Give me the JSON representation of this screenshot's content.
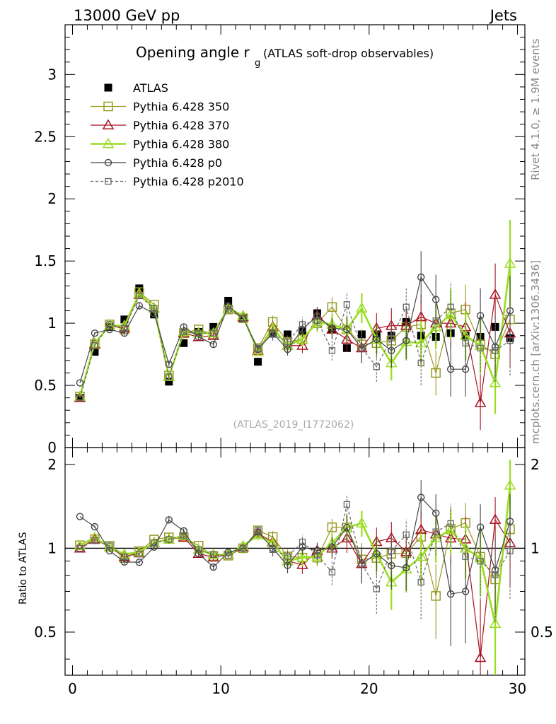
{
  "header": {
    "energy_label": "13000 GeV pp",
    "category_label": "Jets",
    "side_label_top": "Rivet 4.1.0, ≥ 1.9M events",
    "side_label_bottom": "mcplots.cern.ch [arXiv:1306.3436]",
    "analysis_id": "(ATLAS_2019_I1772062)"
  },
  "chart_data": {
    "type": "scatter",
    "title": "Opening angle r",
    "title_subscript": "g",
    "title_suffix": "(ATLAS soft-drop observables)",
    "xlabel": "",
    "ylabel_main": "",
    "ylabel_ratio": "Ratio to ATLAS",
    "xlim": [
      -0.5,
      30.5
    ],
    "ylim_main": [
      0,
      3.4
    ],
    "ylim_ratio": [
      0.35,
      2.3
    ],
    "x_ticks": [
      "0",
      "10",
      "20",
      "30"
    ],
    "y_ticks_main": [
      "0",
      "0.5",
      "1",
      "1.5",
      "2",
      "2.5",
      "3"
    ],
    "y_ticks_ratio": [
      "0.5",
      "1",
      "2"
    ],
    "legend_position": "top-left",
    "x": [
      0.5,
      1.5,
      2.5,
      3.5,
      4.5,
      5.5,
      6.5,
      7.5,
      8.5,
      9.5,
      10.5,
      11.5,
      12.5,
      13.5,
      14.5,
      15.5,
      16.5,
      17.5,
      18.5,
      19.5,
      20.5,
      21.5,
      22.5,
      23.5,
      24.5,
      25.5,
      26.5,
      27.5,
      28.5,
      29.5
    ],
    "series": [
      {
        "name": "ATLAS",
        "color": "#000000",
        "marker": "filled-square",
        "line": "none",
        "values": [
          0.4,
          0.77,
          0.97,
          1.03,
          1.28,
          1.07,
          0.53,
          0.84,
          0.93,
          0.97,
          1.18,
          1.04,
          0.69,
          0.92,
          0.91,
          0.94,
          1.08,
          0.95,
          0.8,
          0.91,
          0.91,
          0.9,
          1.01,
          0.9,
          0.89,
          0.92,
          0.9,
          0.89,
          0.97,
          0.88
        ]
      },
      {
        "name": "Pythia 6.428 350",
        "color": "#999922",
        "marker": "open-square",
        "line": "solid",
        "values": [
          0.41,
          0.83,
          0.99,
          0.95,
          1.25,
          1.15,
          0.58,
          0.92,
          0.95,
          0.91,
          1.11,
          1.04,
          0.8,
          1.01,
          0.85,
          0.87,
          1.0,
          1.13,
          0.95,
          0.83,
          0.84,
          0.86,
          0.97,
          0.99,
          0.6,
          1.08,
          1.11,
          0.83,
          0.75,
          1.03
        ],
        "errors": [
          0,
          0.01,
          0.01,
          0.02,
          0.02,
          0.02,
          0.02,
          0.02,
          0.02,
          0.02,
          0.02,
          0.03,
          0.03,
          0.05,
          0.05,
          0.06,
          0.07,
          0.08,
          0.1,
          0.12,
          0.12,
          0.14,
          0.15,
          0.18,
          0.18,
          0.2,
          0.2,
          0.22,
          0.25,
          0.28
        ]
      },
      {
        "name": "Pythia 6.428 370",
        "color": "#aa1122",
        "marker": "open-triangle",
        "line": "solid",
        "values": [
          0.4,
          0.83,
          0.98,
          0.96,
          1.23,
          1.12,
          0.57,
          0.92,
          0.89,
          0.9,
          1.12,
          1.05,
          0.78,
          0.97,
          0.82,
          0.82,
          1.06,
          0.95,
          0.87,
          0.8,
          0.96,
          0.98,
          0.98,
          1.05,
          1.0,
          1.0,
          0.97,
          0.36,
          1.23,
          0.92
        ],
        "errors": [
          0,
          0.01,
          0.01,
          0.02,
          0.02,
          0.02,
          0.02,
          0.02,
          0.02,
          0.02,
          0.02,
          0.03,
          0.03,
          0.05,
          0.05,
          0.06,
          0.07,
          0.08,
          0.1,
          0.12,
          0.12,
          0.14,
          0.15,
          0.18,
          0.18,
          0.2,
          0.2,
          0.22,
          0.25,
          0.28
        ]
      },
      {
        "name": "Pythia 6.428 380",
        "color": "#99dd22",
        "marker": "open-triangle",
        "line": "solid-thick",
        "values": [
          0.41,
          0.84,
          0.98,
          0.98,
          1.24,
          1.12,
          0.57,
          0.93,
          0.92,
          0.92,
          1.12,
          1.06,
          0.77,
          0.96,
          0.82,
          0.87,
          1.01,
          0.99,
          0.95,
          1.12,
          0.87,
          0.68,
          0.85,
          0.84,
          0.97,
          1.07,
          0.9,
          0.82,
          0.52,
          1.48
        ],
        "errors": [
          0,
          0.01,
          0.01,
          0.02,
          0.02,
          0.02,
          0.02,
          0.02,
          0.02,
          0.02,
          0.02,
          0.03,
          0.03,
          0.05,
          0.05,
          0.06,
          0.07,
          0.08,
          0.1,
          0.12,
          0.12,
          0.14,
          0.15,
          0.18,
          0.18,
          0.2,
          0.2,
          0.22,
          0.25,
          0.35
        ]
      },
      {
        "name": "Pythia 6.428 p0",
        "color": "#444444",
        "marker": "open-circle",
        "line": "solid",
        "values": [
          0.52,
          0.92,
          0.95,
          0.92,
          1.14,
          1.08,
          0.67,
          0.97,
          0.89,
          0.83,
          1.14,
          1.04,
          0.79,
          0.92,
          0.79,
          0.95,
          1.06,
          0.96,
          0.95,
          0.8,
          0.87,
          0.78,
          0.86,
          1.37,
          1.19,
          0.63,
          0.63,
          1.06,
          0.81,
          1.1
        ],
        "errors": [
          0,
          0.01,
          0.01,
          0.02,
          0.02,
          0.02,
          0.02,
          0.02,
          0.02,
          0.02,
          0.02,
          0.03,
          0.03,
          0.05,
          0.05,
          0.06,
          0.07,
          0.08,
          0.1,
          0.12,
          0.12,
          0.14,
          0.15,
          0.21,
          0.2,
          0.22,
          0.22,
          0.22,
          0.25,
          0.28
        ]
      },
      {
        "name": "Pythia 6.428 p2010",
        "color": "#666666",
        "marker": "open-square-small",
        "line": "dashed",
        "values": [
          0.4,
          0.82,
          0.99,
          0.96,
          1.22,
          1.12,
          0.57,
          0.93,
          0.92,
          0.92,
          1.11,
          1.04,
          0.8,
          0.91,
          0.85,
          0.99,
          1.02,
          0.78,
          1.15,
          0.8,
          0.65,
          0.88,
          1.13,
          0.68,
          1.02,
          1.13,
          0.84,
          0.8,
          0.78,
          0.86
        ],
        "errors": [
          0,
          0.01,
          0.01,
          0.02,
          0.02,
          0.02,
          0.02,
          0.02,
          0.02,
          0.02,
          0.02,
          0.03,
          0.03,
          0.05,
          0.05,
          0.06,
          0.07,
          0.08,
          0.1,
          0.12,
          0.12,
          0.14,
          0.15,
          0.18,
          0.18,
          0.2,
          0.2,
          0.22,
          0.25,
          0.28
        ]
      }
    ]
  }
}
